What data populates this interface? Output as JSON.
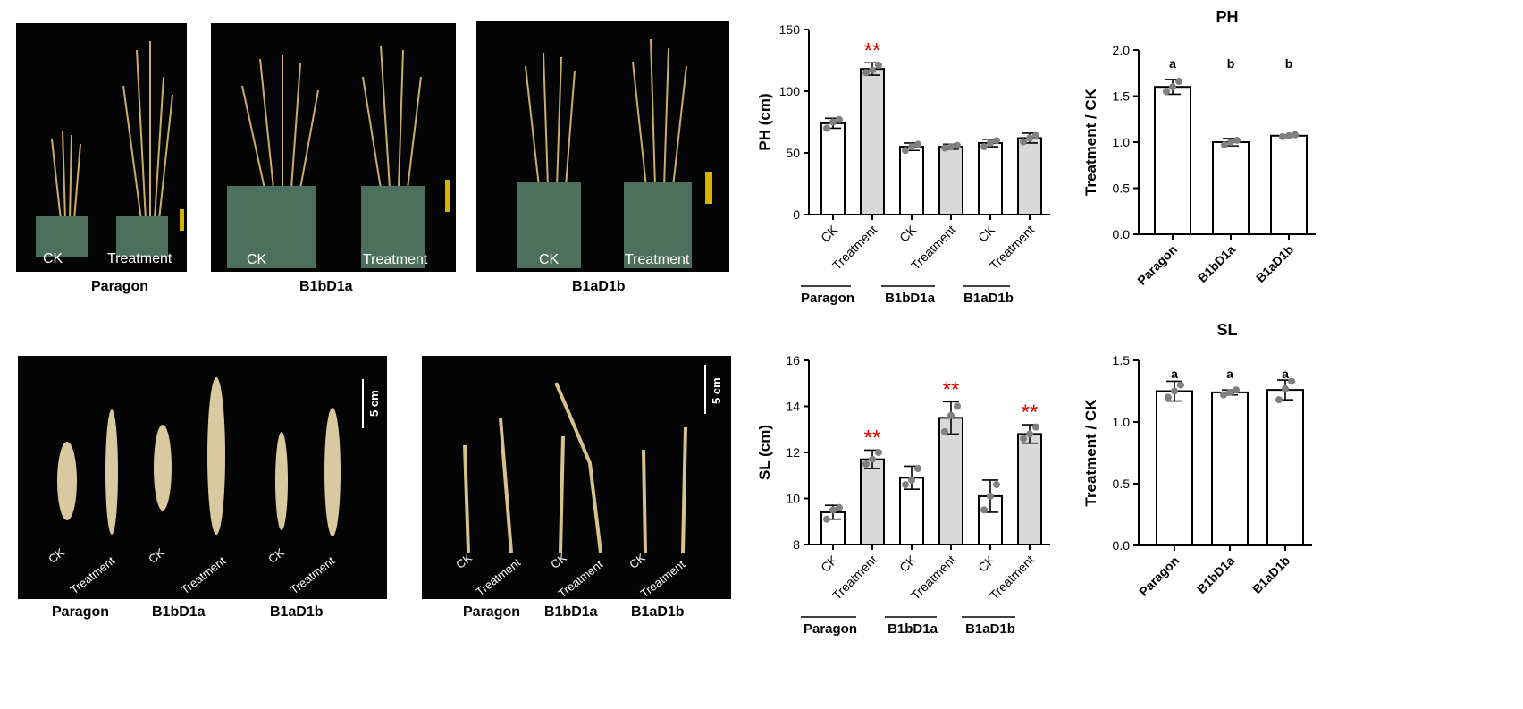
{
  "photos_top": [
    {
      "caption": "Paragon",
      "labels": [
        "CK",
        "Treatment"
      ]
    },
    {
      "caption": "B1bD1a",
      "labels": [
        "CK",
        "Treatment"
      ]
    },
    {
      "caption": "B1aD1b",
      "labels": [
        "CK",
        "Treatment"
      ]
    }
  ],
  "photos_bottom": [
    {
      "captions": [
        "Paragon",
        "B1bD1a",
        "B1aD1b"
      ],
      "labels": [
        "CK",
        "Treatment",
        "CK",
        "Treatment",
        "CK",
        "Treatment"
      ],
      "scale": "5 cm"
    },
    {
      "captions": [
        "Paragon",
        "B1bD1a",
        "B1aD1b"
      ],
      "labels": [
        "CK",
        "Treatment",
        "CK",
        "Treatment",
        "CK",
        "Treatment"
      ],
      "scale": "5 cm"
    }
  ],
  "chart_data": [
    {
      "type": "bar",
      "id": "ph-abs",
      "title": "",
      "ylabel": "PH (cm)",
      "ylim": [
        0,
        150
      ],
      "yticks": [
        0,
        50,
        100,
        150
      ],
      "categories": [
        "CK",
        "Treatment",
        "CK",
        "Treatment",
        "CK",
        "Treatment"
      ],
      "groups": [
        "Paragon",
        "B1bD1a",
        "B1aD1b"
      ],
      "values": [
        74,
        118,
        55,
        55,
        58,
        62
      ],
      "errors": [
        4,
        5,
        3,
        2,
        3,
        4
      ],
      "points": [
        [
          70,
          75,
          77
        ],
        [
          115,
          117,
          121
        ],
        [
          52,
          55,
          57
        ],
        [
          54,
          55,
          56
        ],
        [
          55,
          58,
          60
        ],
        [
          59,
          62,
          64
        ]
      ],
      "fills": [
        "#ffffff",
        "#d9d9d9",
        "#ffffff",
        "#d9d9d9",
        "#ffffff",
        "#d9d9d9"
      ],
      "significance": [
        "",
        "**",
        "",
        "",
        "",
        ""
      ]
    },
    {
      "type": "bar",
      "id": "ph-ratio",
      "title": "PH",
      "ylabel": "Treatment / CK",
      "ylim": [
        0,
        2.0
      ],
      "yticks": [
        0.0,
        0.5,
        1.0,
        1.5,
        2.0
      ],
      "categories": [
        "Paragon",
        "B1bD1a",
        "B1aD1b"
      ],
      "values": [
        1.6,
        1.0,
        1.07
      ],
      "errors": [
        0.08,
        0.04,
        0.01
      ],
      "points": [
        [
          1.55,
          1.6,
          1.66
        ],
        [
          0.97,
          1.0,
          1.02
        ],
        [
          1.06,
          1.07,
          1.08
        ]
      ],
      "fills": [
        "#ffffff",
        "#ffffff",
        "#ffffff"
      ],
      "letters": [
        "a",
        "b",
        "b"
      ]
    },
    {
      "type": "bar",
      "id": "sl-abs",
      "title": "",
      "ylabel": "SL (cm)",
      "ylim": [
        8,
        16
      ],
      "yticks": [
        8,
        10,
        12,
        14,
        16
      ],
      "categories": [
        "CK",
        "Treatment",
        "CK",
        "Treatment",
        "CK",
        "Treatment"
      ],
      "groups": [
        "Paragon",
        "B1bD1a",
        "B1aD1b"
      ],
      "values": [
        9.4,
        11.7,
        10.9,
        13.5,
        10.1,
        12.8
      ],
      "errors": [
        0.3,
        0.4,
        0.5,
        0.7,
        0.7,
        0.4
      ],
      "points": [
        [
          9.1,
          9.5,
          9.6
        ],
        [
          11.5,
          11.7,
          12.0
        ],
        [
          10.6,
          10.8,
          11.3
        ],
        [
          12.9,
          13.6,
          14.0
        ],
        [
          9.5,
          10.1,
          10.6
        ],
        [
          12.6,
          12.8,
          13.1
        ]
      ],
      "fills": [
        "#ffffff",
        "#d9d9d9",
        "#ffffff",
        "#d9d9d9",
        "#ffffff",
        "#d9d9d9"
      ],
      "significance": [
        "",
        "**",
        "",
        "**",
        "",
        "**"
      ]
    },
    {
      "type": "bar",
      "id": "sl-ratio",
      "title": "SL",
      "ylabel": "Treatment / CK",
      "ylim": [
        0,
        1.5
      ],
      "yticks": [
        0.0,
        0.5,
        1.0,
        1.5
      ],
      "categories": [
        "Paragon",
        "B1bD1a",
        "B1aD1b"
      ],
      "values": [
        1.25,
        1.24,
        1.26
      ],
      "errors": [
        0.08,
        0.02,
        0.08
      ],
      "points": [
        [
          1.2,
          1.25,
          1.3
        ],
        [
          1.22,
          1.24,
          1.26
        ],
        [
          1.18,
          1.27,
          1.33
        ]
      ],
      "fills": [
        "#ffffff",
        "#ffffff",
        "#ffffff"
      ],
      "letters": [
        "a",
        "a",
        "a"
      ]
    }
  ]
}
